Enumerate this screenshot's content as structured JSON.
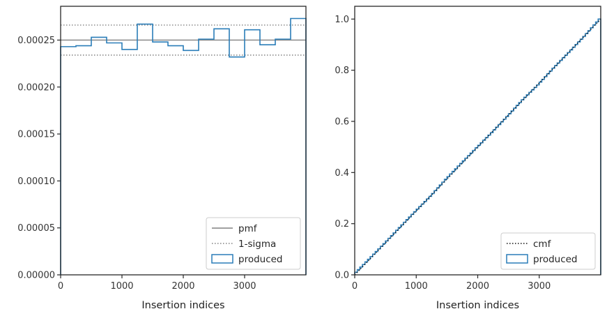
{
  "colors": {
    "produced": "#2a7db8",
    "pmf": "#808080",
    "sigma": "#808080",
    "cmf": "#111111",
    "axes": "#262626"
  },
  "chart_data": [
    {
      "type": "histogram-step",
      "xlabel": "Insertion indices",
      "ylabel": "",
      "xlim": [
        0,
        4000
      ],
      "ylim": [
        0,
        0.000286
      ],
      "xticks": [
        0,
        1000,
        2000,
        3000
      ],
      "xtick_labels": [
        "0",
        "1000",
        "2000",
        "3000"
      ],
      "yticks": [
        0,
        5e-05,
        0.0001,
        0.00015,
        0.0002,
        0.00025
      ],
      "ytick_labels": [
        "0.00000",
        "0.00005",
        "0.00010",
        "0.00015",
        "0.00020",
        "0.00025"
      ],
      "bin_edges": [
        0,
        250,
        500,
        750,
        1000,
        1250,
        1500,
        1750,
        2000,
        2250,
        2500,
        2750,
        3000,
        3250,
        3500,
        3750,
        4000
      ],
      "values": [
        0.000243,
        0.000244,
        0.000253,
        0.000247,
        0.00024,
        0.000267,
        0.000248,
        0.000244,
        0.000239,
        0.000251,
        0.000262,
        0.000232,
        0.000261,
        0.000245,
        0.000251,
        0.000273
      ],
      "pmf": 0.00025,
      "sigma_band": [
        0.000234,
        0.000266
      ],
      "legend": {
        "position": "lower right",
        "entries": [
          {
            "key": "pmf",
            "label": "pmf",
            "style": "solid-line"
          },
          {
            "key": "sigma",
            "label": "1-sigma",
            "style": "dotted-line"
          },
          {
            "key": "produced",
            "label": "produced",
            "style": "box"
          }
        ]
      }
    },
    {
      "type": "cumulative-step",
      "xlabel": "Insertion indices",
      "ylabel": "",
      "xlim": [
        0,
        4000
      ],
      "ylim": [
        0,
        1.05
      ],
      "xticks": [
        0,
        1000,
        2000,
        3000
      ],
      "xtick_labels": [
        "0",
        "1000",
        "2000",
        "3000"
      ],
      "yticks": [
        0,
        0.2,
        0.4,
        0.6,
        0.8,
        1.0
      ],
      "ytick_labels": [
        "0.0",
        "0.2",
        "0.4",
        "0.6",
        "0.8",
        "1.0"
      ],
      "x": [
        0,
        250,
        500,
        750,
        1000,
        1250,
        1500,
        1750,
        2000,
        2250,
        2500,
        2750,
        3000,
        3250,
        3500,
        3750,
        4000
      ],
      "produced": [
        0,
        0.0608,
        0.1218,
        0.185,
        0.2468,
        0.3068,
        0.3735,
        0.4355,
        0.4965,
        0.5563,
        0.619,
        0.6845,
        0.7425,
        0.8078,
        0.869,
        0.9318,
        1.0
      ],
      "cmf": [
        0,
        1.0
      ],
      "legend": {
        "position": "lower right",
        "entries": [
          {
            "key": "cmf",
            "label": "cmf",
            "style": "dotted-line"
          },
          {
            "key": "produced",
            "label": "produced",
            "style": "box"
          }
        ]
      }
    }
  ]
}
